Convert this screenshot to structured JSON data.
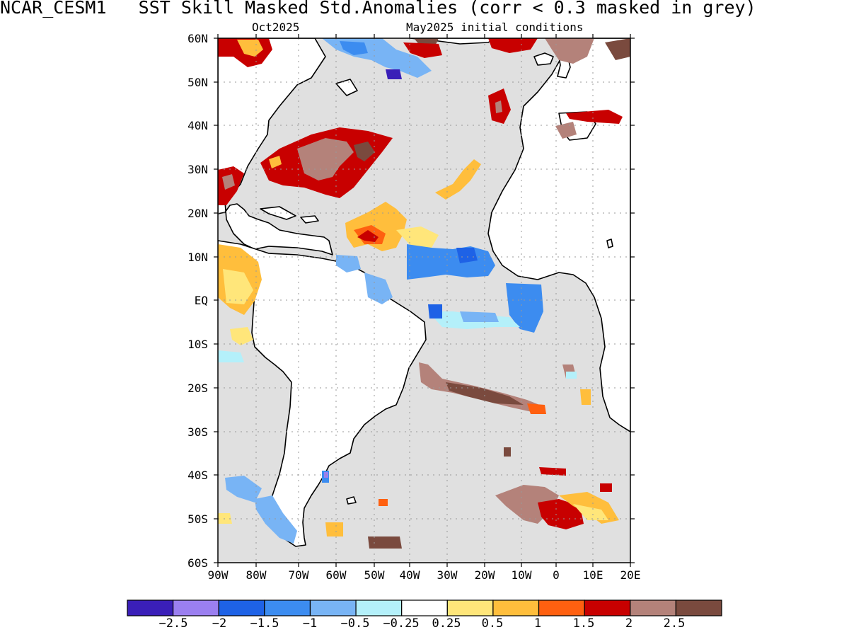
{
  "header": {
    "title": "NCAR_CESM1   SST Skill Masked Std.Anomalies (corr < 0.3 masked in grey)",
    "valid_label": "Oct2025",
    "init_label": "May2025 initial conditions"
  },
  "axes": {
    "lat_labels": [
      "60N",
      "50N",
      "40N",
      "30N",
      "20N",
      "10N",
      "EQ",
      "10S",
      "20S",
      "30S",
      "40S",
      "50S",
      "60S"
    ],
    "lon_labels": [
      "90W",
      "80W",
      "70W",
      "60W",
      "50W",
      "40W",
      "30W",
      "20W",
      "10W",
      "0",
      "10E",
      "20E"
    ]
  },
  "colorbar": {
    "colors": [
      "#3a1fb8",
      "#9b7ff0",
      "#1e62e6",
      "#3c8cf0",
      "#78b4f5",
      "#b4f0fa",
      "#ffffff",
      "#ffe67a",
      "#ffbe3c",
      "#ff6010",
      "#c80000",
      "#b4827a",
      "#7a4a3e"
    ],
    "labels": [
      "−2.5",
      "−2",
      "−1.5",
      "−1",
      "−0.5",
      "−0.25",
      "0.25",
      "0.5",
      "1",
      "1.5",
      "2",
      "2.5"
    ]
  },
  "map_colors": {
    "land": "#ffffff",
    "masked": "#e0e0e0"
  }
}
